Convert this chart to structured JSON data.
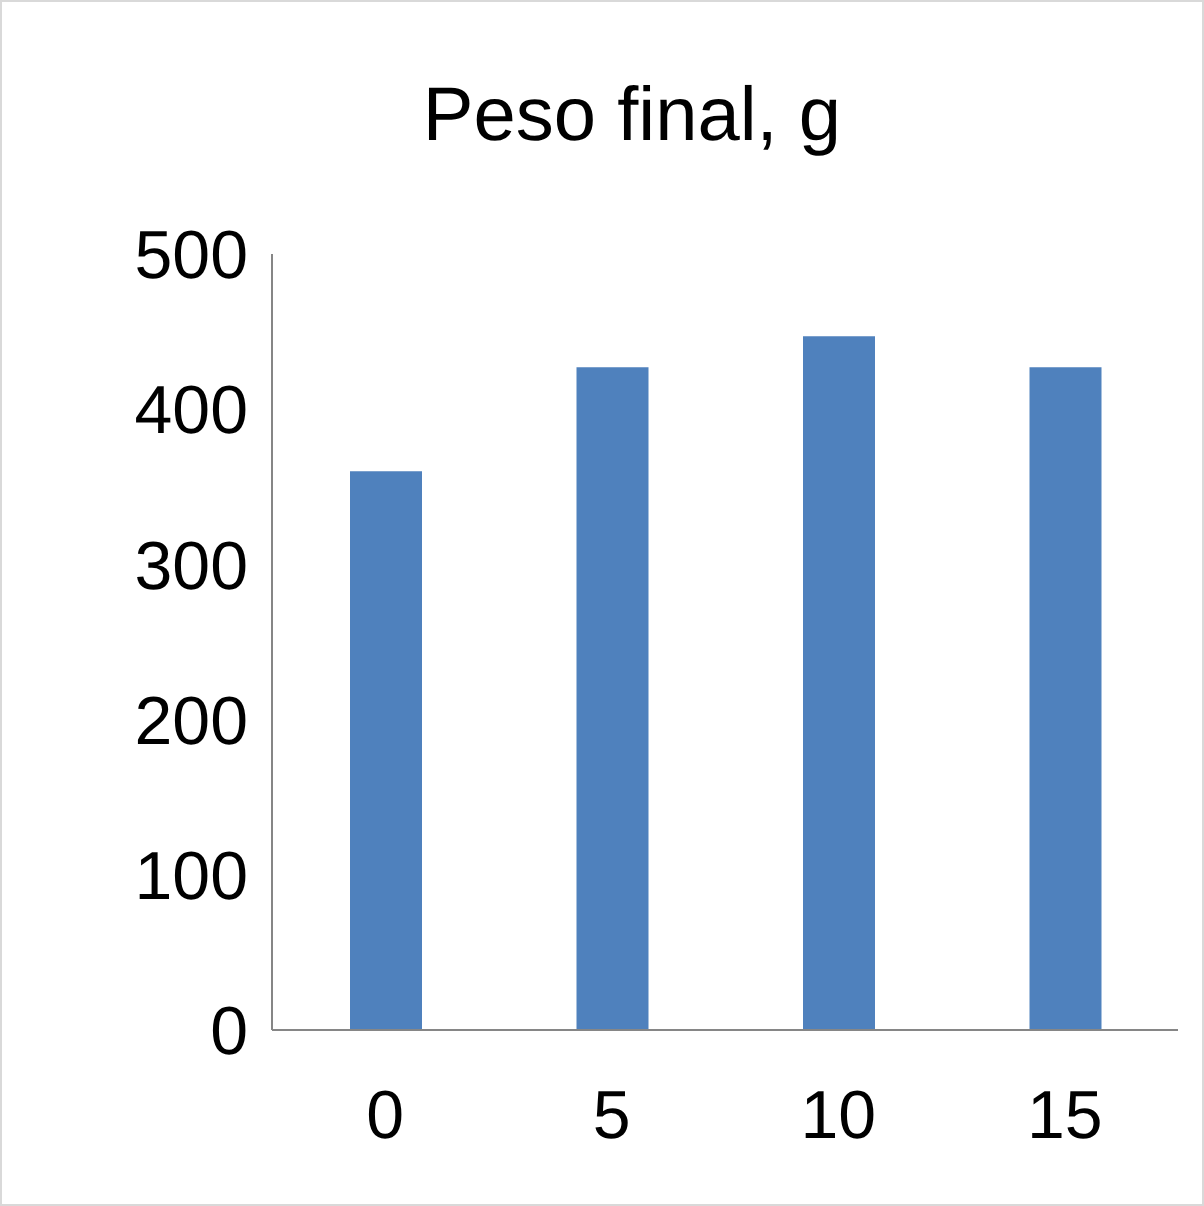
{
  "chart_data": {
    "type": "bar",
    "title": "Peso final, g",
    "categories": [
      "0",
      "5",
      "10",
      "15"
    ],
    "values": [
      360,
      427,
      447,
      427
    ],
    "color": "#4f81bd",
    "ylim": [
      0,
      500
    ],
    "yticks": [
      0,
      100,
      200,
      300,
      400,
      500
    ],
    "grid": false,
    "legend": false
  }
}
